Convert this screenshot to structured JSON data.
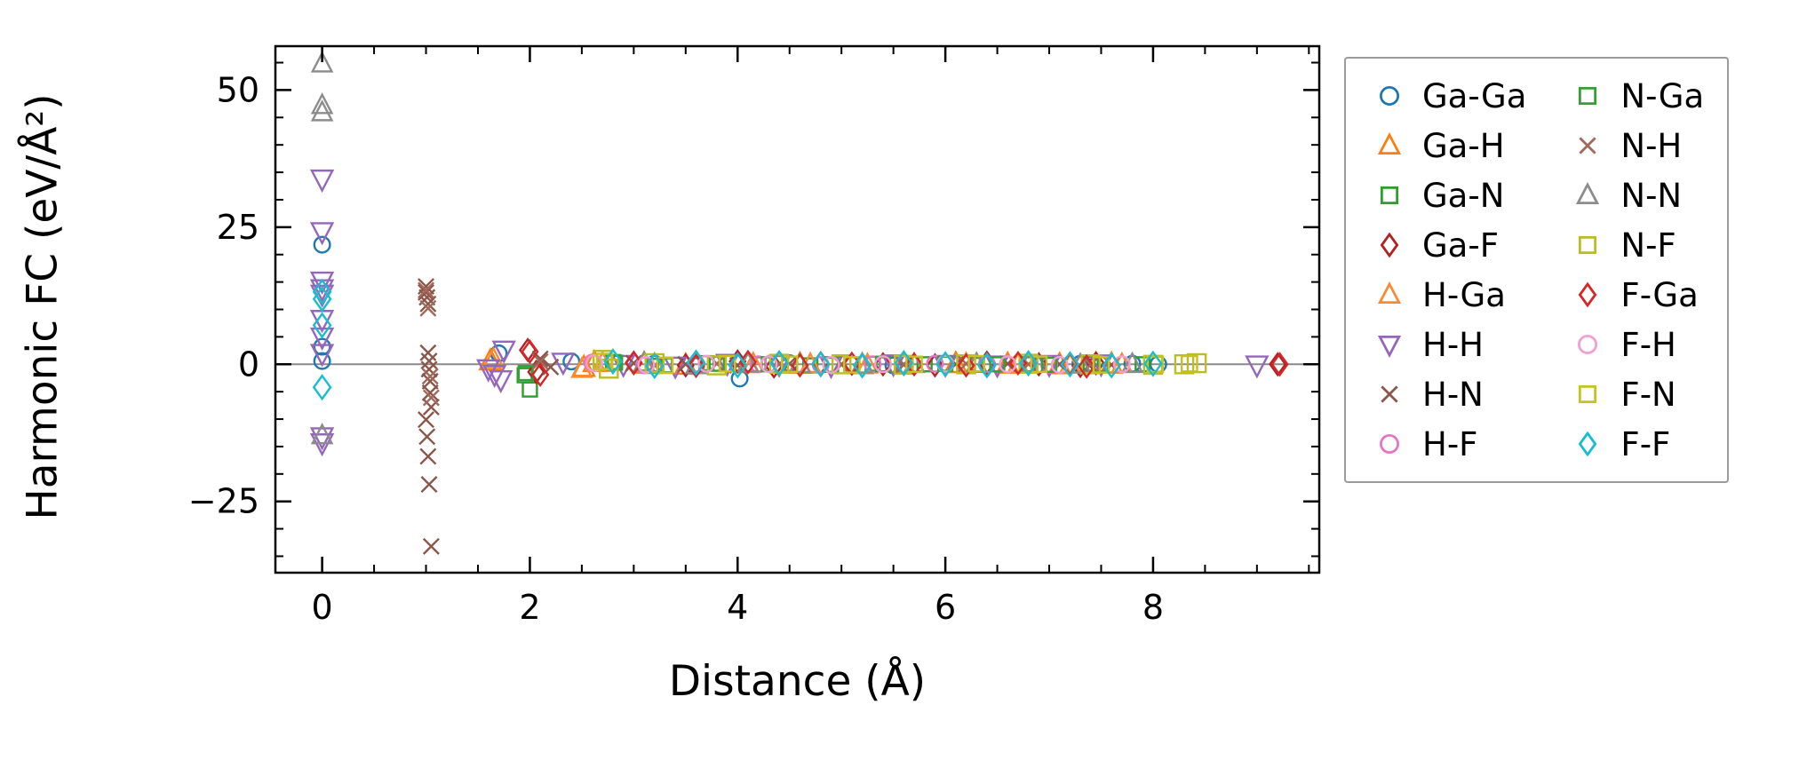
{
  "chart_data": {
    "type": "scatter",
    "title": "",
    "xlabel": "Distance (Å)",
    "ylabel": "Harmonic FC (eV/Å²)",
    "xlim": [
      -0.45,
      9.6
    ],
    "ylim": [
      -38,
      58
    ],
    "x_ticks": [
      0,
      2,
      4,
      6,
      8
    ],
    "y_ticks": [
      -25,
      0,
      25,
      50
    ],
    "x_minor_step": 0.5,
    "y_minor_step": 5,
    "grid": false,
    "zero_line": true,
    "zero_line_color": "#8a8a8a",
    "frame_color": "#000000",
    "legend_position": "outside-right",
    "series": [
      {
        "name": "Ga-Ga",
        "marker": "circle",
        "color": "#1f77b4",
        "size": 11,
        "points": [
          [
            0,
            21.8
          ],
          [
            0,
            3.2
          ],
          [
            0,
            0.6
          ],
          [
            1.7,
            2.0
          ],
          [
            2.4,
            0.5
          ],
          [
            3.2,
            0.1
          ],
          [
            3.6,
            -0.3
          ],
          [
            4.02,
            -2.6
          ],
          [
            4.5,
            0.2
          ],
          [
            5.1,
            -0.1
          ],
          [
            5.5,
            -0.2
          ],
          [
            6.0,
            0.1
          ],
          [
            6.4,
            0.0
          ],
          [
            6.9,
            -0.1
          ],
          [
            7.3,
            0.1
          ],
          [
            7.8,
            0.1
          ],
          [
            8.05,
            0.0
          ]
        ]
      },
      {
        "name": "Ga-H",
        "marker": "triangle-up",
        "color": "#ff7f0e",
        "size": 13,
        "points": [
          [
            1.62,
            0.6
          ],
          [
            2.52,
            -0.6
          ],
          [
            2.62,
            0.3
          ],
          [
            3.1,
            0.0
          ],
          [
            3.5,
            -0.2
          ],
          [
            4.1,
            0.1
          ],
          [
            4.6,
            0.0
          ],
          [
            5.2,
            -0.1
          ],
          [
            5.6,
            0.0
          ],
          [
            6.1,
            0.1
          ],
          [
            6.6,
            0.0
          ],
          [
            7.1,
            -0.1
          ],
          [
            7.6,
            0.0
          ]
        ]
      },
      {
        "name": "Ga-N",
        "marker": "square",
        "color": "#2ca02c",
        "size": 11,
        "points": [
          [
            1.95,
            -2.0
          ],
          [
            2.0,
            -4.6
          ],
          [
            2.8,
            0.4
          ],
          [
            3.2,
            -0.3
          ],
          [
            3.7,
            0.2
          ],
          [
            4.2,
            0.0
          ],
          [
            4.7,
            -0.2
          ],
          [
            5.3,
            0.1
          ],
          [
            5.8,
            0.0
          ],
          [
            6.3,
            -0.1
          ],
          [
            6.8,
            0.0
          ],
          [
            7.4,
            0.1
          ],
          [
            7.9,
            0.0
          ]
        ]
      },
      {
        "name": "Ga-F",
        "marker": "diamond",
        "color": "#b22222",
        "size": 12,
        "points": [
          [
            1.98,
            2.6
          ],
          [
            2.06,
            -1.4
          ],
          [
            3.0,
            0.3
          ],
          [
            3.5,
            -0.2
          ],
          [
            4.0,
            0.5
          ],
          [
            4.35,
            -0.4
          ],
          [
            4.8,
            0.2
          ],
          [
            5.4,
            0.0
          ],
          [
            5.9,
            -0.2
          ],
          [
            6.4,
            0.3
          ],
          [
            6.9,
            0.0
          ],
          [
            7.3,
            -0.3
          ],
          [
            7.45,
            0.2
          ],
          [
            9.2,
            0.0
          ]
        ]
      },
      {
        "name": "H-Ga",
        "marker": "triangle-up",
        "color": "#fa8b32",
        "size": 12,
        "points": [
          [
            1.65,
            0.9
          ],
          [
            2.5,
            -0.9
          ],
          [
            2.7,
            0.2
          ],
          [
            3.2,
            0.0
          ],
          [
            3.6,
            -0.2
          ],
          [
            4.15,
            0.1
          ],
          [
            4.7,
            0.0
          ],
          [
            5.25,
            -0.1
          ],
          [
            5.7,
            0.0
          ],
          [
            6.2,
            0.1
          ],
          [
            6.7,
            0.0
          ],
          [
            7.2,
            -0.1
          ],
          [
            7.7,
            0.0
          ]
        ]
      },
      {
        "name": "H-H",
        "marker": "triangle-down",
        "color": "#9467bd",
        "size": 13,
        "points": [
          [
            0,
            33.8
          ],
          [
            0,
            24.2
          ],
          [
            0,
            15.2
          ],
          [
            0,
            13.8
          ],
          [
            0,
            12.8
          ],
          [
            0,
            8.2
          ],
          [
            0,
            5.0
          ],
          [
            0,
            2.0
          ],
          [
            0,
            -13.2
          ],
          [
            0,
            -14.3
          ],
          [
            1.6,
            -0.8
          ],
          [
            1.66,
            -1.8
          ],
          [
            1.72,
            -2.8
          ],
          [
            1.75,
            2.6
          ],
          [
            2.32,
            0.4
          ],
          [
            2.9,
            0.0
          ],
          [
            3.4,
            -0.3
          ],
          [
            3.9,
            0.2
          ],
          [
            4.4,
            0.0
          ],
          [
            4.9,
            -0.2
          ],
          [
            5.5,
            0.1
          ],
          [
            6.0,
            0.0
          ],
          [
            6.5,
            -0.1
          ],
          [
            7.0,
            0.0
          ],
          [
            7.5,
            0.1
          ],
          [
            9.0,
            -0.1
          ]
        ]
      },
      {
        "name": "H-N",
        "marker": "x",
        "color": "#8c564b",
        "size": 12,
        "points": [
          [
            1.0,
            14.2
          ],
          [
            1.0,
            13.1
          ],
          [
            1.01,
            12.2
          ],
          [
            1.02,
            11.0
          ],
          [
            1.02,
            2.1
          ],
          [
            1.03,
            0.6
          ],
          [
            1.03,
            -0.9
          ],
          [
            1.04,
            -3.1
          ],
          [
            1.04,
            -5.2
          ],
          [
            1.05,
            -7.8
          ],
          [
            1.0,
            -10.1
          ],
          [
            1.01,
            -13.2
          ],
          [
            1.02,
            -16.8
          ],
          [
            1.03,
            -21.9
          ],
          [
            1.05,
            -33.2
          ],
          [
            2.1,
            1.0
          ],
          [
            2.2,
            -0.5
          ],
          [
            3.0,
            0.2
          ],
          [
            3.5,
            0.0
          ],
          [
            4.0,
            -0.2
          ],
          [
            4.5,
            0.1
          ],
          [
            5.0,
            0.0
          ],
          [
            5.6,
            -0.1
          ],
          [
            6.1,
            0.0
          ],
          [
            6.6,
            0.1
          ],
          [
            7.1,
            0.0
          ],
          [
            7.6,
            -0.1
          ]
        ]
      },
      {
        "name": "H-F",
        "marker": "circle",
        "color": "#e377c2",
        "size": 11,
        "points": [
          [
            2.6,
            0.3
          ],
          [
            3.1,
            -0.2
          ],
          [
            3.6,
            0.1
          ],
          [
            4.2,
            0.0
          ],
          [
            4.8,
            -0.1
          ],
          [
            5.3,
            0.0
          ],
          [
            5.9,
            0.1
          ],
          [
            6.4,
            0.0
          ],
          [
            7.0,
            -0.1
          ],
          [
            7.5,
            0.0
          ]
        ]
      },
      {
        "name": "N-Ga",
        "marker": "square",
        "color": "#35a035",
        "size": 11,
        "points": [
          [
            1.96,
            -1.6
          ],
          [
            2.82,
            0.3
          ],
          [
            3.3,
            -0.2
          ],
          [
            3.8,
            0.1
          ],
          [
            4.3,
            0.0
          ],
          [
            4.9,
            -0.1
          ],
          [
            5.4,
            0.0
          ],
          [
            6.0,
            0.1
          ],
          [
            6.5,
            0.0
          ],
          [
            7.0,
            -0.1
          ],
          [
            7.5,
            0.0
          ]
        ]
      },
      {
        "name": "N-H",
        "marker": "x",
        "color": "#a0695c",
        "size": 12,
        "points": [
          [
            1.0,
            13.5
          ],
          [
            1.02,
            10.2
          ],
          [
            1.04,
            -2.2
          ],
          [
            1.05,
            -6.1
          ],
          [
            2.1,
            0.5
          ],
          [
            3.2,
            -0.2
          ],
          [
            3.8,
            0.1
          ],
          [
            4.4,
            0.0
          ],
          [
            5.0,
            -0.1
          ],
          [
            5.6,
            0.0
          ],
          [
            6.2,
            0.1
          ],
          [
            6.8,
            0.0
          ],
          [
            7.4,
            -0.1
          ]
        ]
      },
      {
        "name": "N-N",
        "marker": "triangle-up",
        "color": "#8c8c8c",
        "size": 12,
        "points": [
          [
            0,
            54.8
          ],
          [
            0,
            47.2
          ],
          [
            0,
            45.9
          ],
          [
            0,
            -13.0
          ],
          [
            3.1,
            0.3
          ],
          [
            3.6,
            -0.2
          ],
          [
            4.1,
            0.1
          ],
          [
            4.6,
            0.0
          ],
          [
            5.2,
            -0.1
          ],
          [
            5.7,
            0.0
          ],
          [
            6.3,
            0.1
          ],
          [
            6.8,
            0.0
          ],
          [
            7.3,
            -0.1
          ],
          [
            7.8,
            0.0
          ]
        ]
      },
      {
        "name": "N-F",
        "marker": "square",
        "color": "#bcbd22",
        "size": 14,
        "points": [
          [
            2.7,
            0.8
          ],
          [
            2.76,
            -0.8
          ],
          [
            3.2,
            0.2
          ],
          [
            3.8,
            -0.2
          ],
          [
            4.4,
            0.1
          ],
          [
            5.0,
            0.0
          ],
          [
            5.6,
            -0.1
          ],
          [
            6.2,
            0.0
          ],
          [
            6.8,
            0.1
          ],
          [
            7.4,
            0.0
          ],
          [
            8.0,
            -0.1
          ],
          [
            8.3,
            0.0
          ],
          [
            8.42,
            0.2
          ]
        ]
      },
      {
        "name": "F-Ga",
        "marker": "diamond",
        "color": "#d62728",
        "size": 12,
        "points": [
          [
            2.0,
            2.3
          ],
          [
            2.1,
            -1.9
          ],
          [
            3.0,
            0.2
          ],
          [
            3.6,
            -0.3
          ],
          [
            4.1,
            0.4
          ],
          [
            4.6,
            -0.2
          ],
          [
            5.1,
            0.1
          ],
          [
            5.7,
            0.0
          ],
          [
            6.2,
            -0.2
          ],
          [
            6.7,
            0.2
          ],
          [
            7.2,
            0.0
          ],
          [
            7.36,
            -0.4
          ],
          [
            9.22,
            0.0
          ]
        ]
      },
      {
        "name": "F-H",
        "marker": "circle",
        "color": "#f29fd2",
        "size": 11,
        "points": [
          [
            2.62,
            0.2
          ],
          [
            3.12,
            -0.1
          ],
          [
            3.7,
            0.1
          ],
          [
            4.3,
            0.0
          ],
          [
            4.9,
            -0.1
          ],
          [
            5.4,
            0.0
          ],
          [
            6.0,
            0.1
          ],
          [
            6.6,
            0.0
          ],
          [
            7.1,
            -0.1
          ],
          [
            7.7,
            0.0
          ]
        ]
      },
      {
        "name": "F-N",
        "marker": "square",
        "color": "#c8c21f",
        "size": 12,
        "points": [
          [
            2.72,
            0.5
          ],
          [
            3.3,
            -0.2
          ],
          [
            3.9,
            0.1
          ],
          [
            4.5,
            0.0
          ],
          [
            5.1,
            -0.1
          ],
          [
            5.7,
            0.0
          ],
          [
            6.3,
            0.1
          ],
          [
            6.9,
            0.0
          ],
          [
            7.5,
            -0.1
          ],
          [
            8.02,
            0.0
          ],
          [
            8.35,
            0.1
          ]
        ]
      },
      {
        "name": "F-F",
        "marker": "diamond",
        "color": "#17becf",
        "size": 13,
        "points": [
          [
            0,
            13.2
          ],
          [
            0,
            11.9
          ],
          [
            0,
            7.1
          ],
          [
            0,
            -4.2
          ],
          [
            2.8,
            0.5
          ],
          [
            3.2,
            -0.3
          ],
          [
            3.6,
            0.3
          ],
          [
            4.0,
            -0.2
          ],
          [
            4.4,
            0.2
          ],
          [
            4.8,
            0.0
          ],
          [
            5.2,
            -0.2
          ],
          [
            5.6,
            0.2
          ],
          [
            6.0,
            0.0
          ],
          [
            6.4,
            -0.2
          ],
          [
            6.8,
            0.2
          ],
          [
            7.2,
            0.0
          ],
          [
            7.6,
            -0.2
          ],
          [
            8.0,
            0.1
          ]
        ]
      }
    ]
  }
}
